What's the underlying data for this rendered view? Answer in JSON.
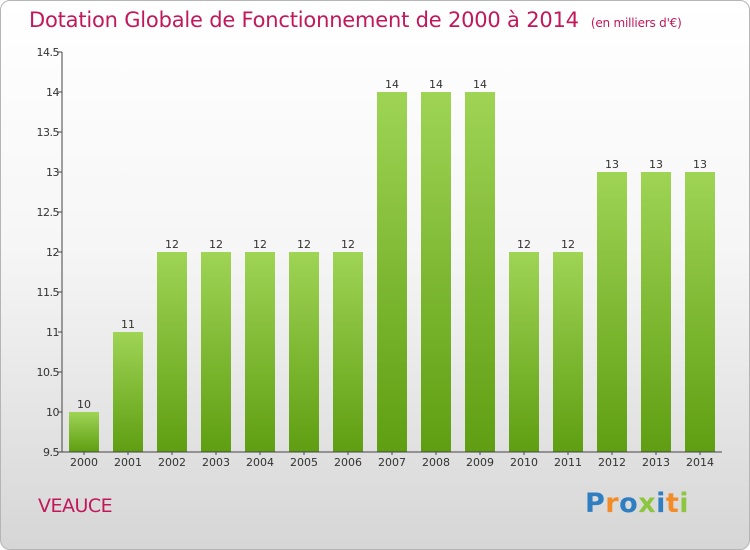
{
  "header": {
    "title": "Dotation Globale de Fonctionnement de 2000 à 2014",
    "unit": "(en milliers d'€)"
  },
  "commune": "VEAUCE",
  "logo": {
    "text": "Proxiti",
    "letters": [
      {
        "char": "P",
        "color": "#2f7ec1"
      },
      {
        "char": "r",
        "color": "#f28c28"
      },
      {
        "char": "o",
        "color": "#2f7ec1"
      },
      {
        "char": "x",
        "color": "#8cc63f"
      },
      {
        "char": "i",
        "color": "#2f7ec1"
      },
      {
        "char": "t",
        "color": "#f28c28"
      },
      {
        "char": "i",
        "color": "#8cc63f"
      }
    ]
  },
  "colors": {
    "title": "#c2185b",
    "bar_top": "#9fd455",
    "bar_bottom": "#5f9e12",
    "axis": "#444444"
  },
  "chart_data": {
    "type": "bar",
    "categories": [
      "2000",
      "2001",
      "2002",
      "2003",
      "2004",
      "2005",
      "2006",
      "2007",
      "2008",
      "2009",
      "2010",
      "2011",
      "2012",
      "2013",
      "2014"
    ],
    "values": [
      10,
      11,
      12,
      12,
      12,
      12,
      12,
      14,
      14,
      14,
      12,
      12,
      13,
      13,
      13
    ],
    "labels": [
      "10",
      "11",
      "12",
      "12",
      "12",
      "12",
      "12",
      "14",
      "14",
      "14",
      "12",
      "12",
      "13",
      "13",
      "13"
    ],
    "ylim": [
      9.5,
      14.5
    ],
    "yticks": [
      9.5,
      10,
      10.5,
      11,
      11.5,
      12,
      12.5,
      13,
      13.5,
      14,
      14.5
    ],
    "ytick_labels": [
      "9.5",
      "10",
      "10.5",
      "11",
      "11.5",
      "12",
      "12.5",
      "13",
      "13.5",
      "14",
      "14.5"
    ],
    "grid": false,
    "xlabel": "",
    "ylabel": ""
  }
}
